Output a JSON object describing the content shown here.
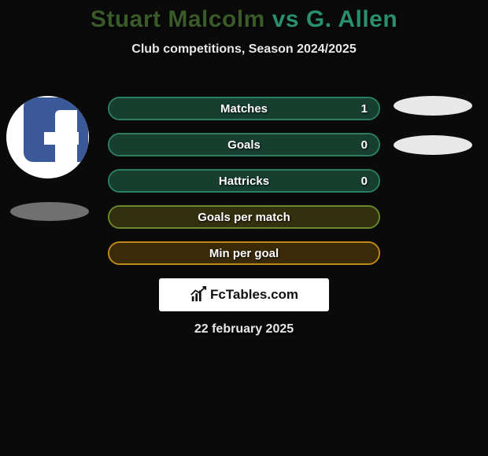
{
  "title": {
    "player1": "Stuart Malcolm",
    "vs": "vs",
    "player2": "G. Allen",
    "player1_color": "#3a5a2a",
    "vs_color": "#2a8f6f",
    "player2_color": "#2a8f6f"
  },
  "subtitle": "Club competitions, Season 2024/2025",
  "left_player": {
    "avatar_type": "facebook"
  },
  "bars": [
    {
      "label": "Matches",
      "value": "1",
      "border": "#2b7f60",
      "fill": "#163f30",
      "fill_pct": 100
    },
    {
      "label": "Goals",
      "value": "0",
      "border": "#2b7f60",
      "fill": "#163f30",
      "fill_pct": 100
    },
    {
      "label": "Hattricks",
      "value": "0",
      "border": "#2b7f60",
      "fill": "#163f30",
      "fill_pct": 100
    },
    {
      "label": "Goals per match",
      "value": "",
      "border": "#6a8a2a",
      "fill": "#33300f",
      "fill_pct": 100
    },
    {
      "label": "Min per goal",
      "value": "",
      "border": "#c08a1a",
      "fill": "#3a2a08",
      "fill_pct": 100
    }
  ],
  "watermark": "FcTables.com",
  "date": "22 february 2025",
  "colors": {
    "background": "#0a0a0a",
    "subtitle_text": "#e8e8e8",
    "left_namebar": "#707070",
    "right_namebar": "#e8e8e8",
    "watermark_bg": "#ffffff",
    "watermark_text": "#111111"
  }
}
